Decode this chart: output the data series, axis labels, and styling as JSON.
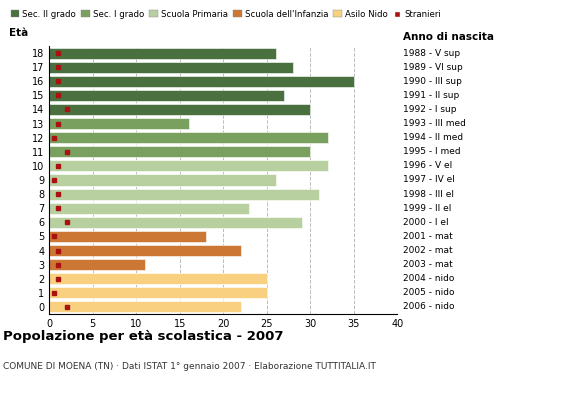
{
  "ages": [
    18,
    17,
    16,
    15,
    14,
    13,
    12,
    11,
    10,
    9,
    8,
    7,
    6,
    5,
    4,
    3,
    2,
    1,
    0
  ],
  "anni_nascita": [
    "1988 - V sup",
    "1989 - VI sup",
    "1990 - III sup",
    "1991 - II sup",
    "1992 - I sup",
    "1993 - III med",
    "1994 - II med",
    "1995 - I med",
    "1996 - V el",
    "1997 - IV el",
    "1998 - III el",
    "1999 - II el",
    "2000 - I el",
    "2001 - mat",
    "2002 - mat",
    "2003 - mat",
    "2004 - nido",
    "2005 - nido",
    "2006 - nido"
  ],
  "bar_values": [
    26,
    28,
    35,
    27,
    30,
    16,
    32,
    30,
    32,
    26,
    31,
    23,
    29,
    18,
    22,
    11,
    25,
    25,
    22
  ],
  "bar_color_map": {
    "18": "#4a7040",
    "17": "#4a7040",
    "16": "#4a7040",
    "15": "#4a7040",
    "14": "#4a7040",
    "13": "#7aA060",
    "12": "#7aA060",
    "11": "#7aA060",
    "10": "#b8d0a0",
    "9": "#b8d0a0",
    "8": "#b8d0a0",
    "7": "#b8d0a0",
    "6": "#b8d0a0",
    "5": "#cc7733",
    "4": "#cc7733",
    "3": "#cc7733",
    "2": "#f8d080",
    "1": "#f8d080",
    "0": "#f8d080"
  },
  "stranieri_color": "#aa1111",
  "stranieri_values": [
    1,
    1,
    1,
    1,
    2,
    1,
    0.5,
    2,
    1,
    0.5,
    1,
    1,
    2,
    0.5,
    1,
    1,
    1,
    0.5,
    2
  ],
  "legend_labels": [
    "Sec. II grado",
    "Sec. I grado",
    "Scuola Primaria",
    "Scuola dell'Infanzia",
    "Asilo Nido",
    "Stranieri"
  ],
  "legend_colors": [
    "#4a7040",
    "#7aA060",
    "#b8d0a0",
    "#cc7733",
    "#f8d080",
    "#aa1111"
  ],
  "title": "Popolazione per età scolastica - 2007",
  "subtitle": "COMUNE DI MOENA (TN) · Dati ISTAT 1° gennaio 2007 · Elaborazione TUTTITALIA.IT",
  "xlim": [
    0,
    40
  ],
  "xticks": [
    0,
    5,
    10,
    15,
    20,
    25,
    30,
    35,
    40
  ],
  "grid_color": "#bbbbbb",
  "bg_color": "#ffffff",
  "bar_height": 0.78
}
